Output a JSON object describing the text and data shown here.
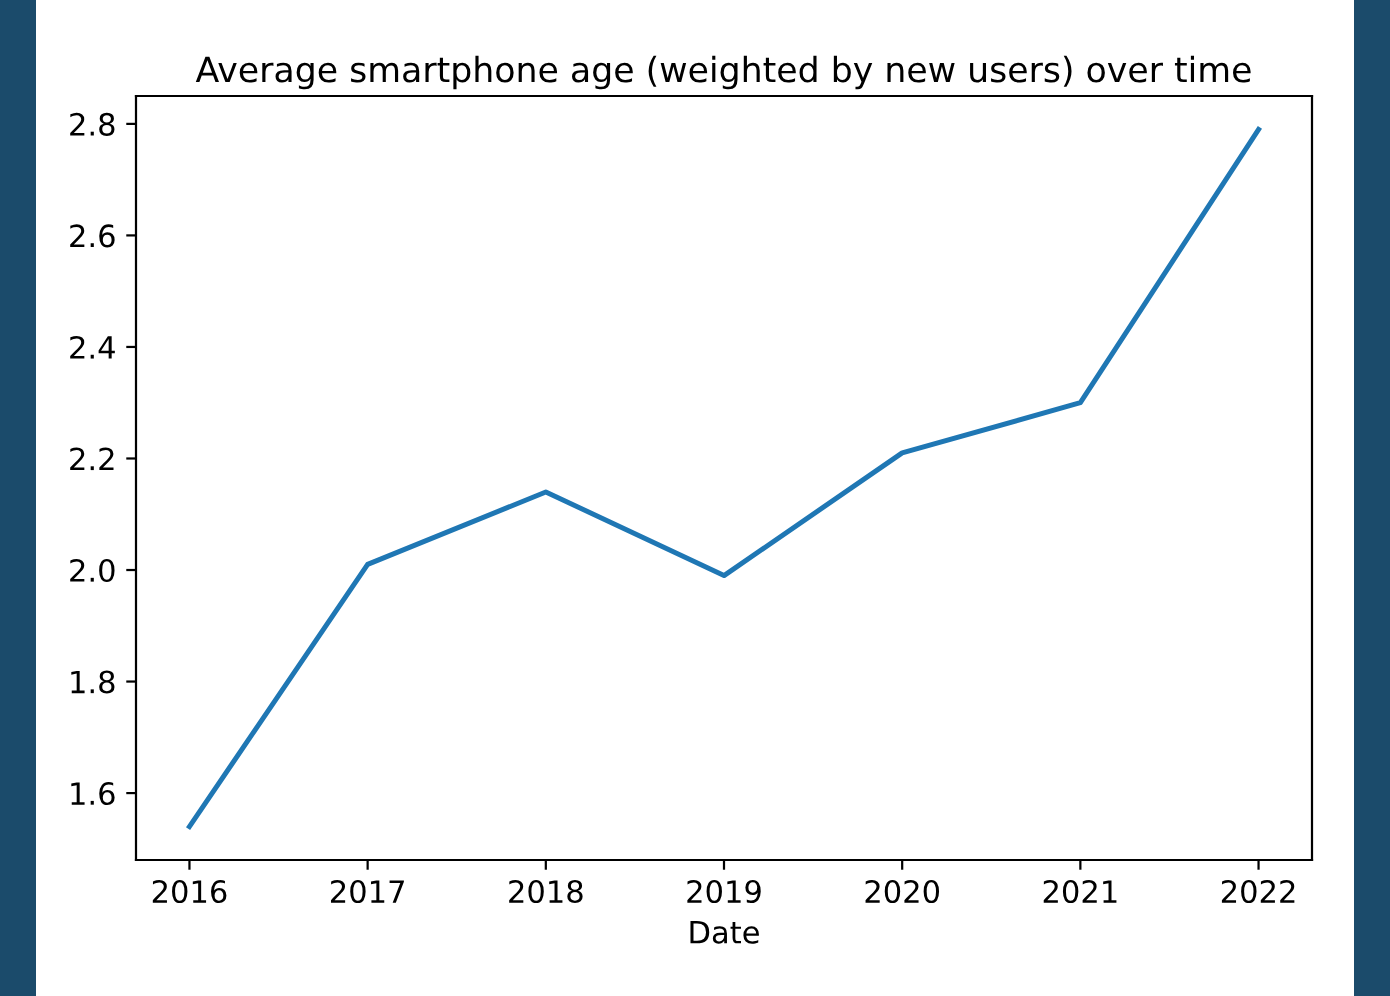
{
  "chart_data": {
    "type": "line",
    "title": "Average smartphone age (weighted by new users) over time",
    "xlabel": "Date",
    "x": [
      2016,
      2017,
      2018,
      2019,
      2020,
      2021,
      2022
    ],
    "series": [
      {
        "color": "#1f77b4",
        "values": [
          1.54,
          2.01,
          2.14,
          1.99,
          2.21,
          2.3,
          2.79
        ]
      }
    ],
    "xlim": [
      2015.7,
      2022.3
    ],
    "xticks": [
      2016,
      2017,
      2018,
      2019,
      2020,
      2021,
      2022
    ],
    "ylim": [
      1.48,
      2.85
    ],
    "yticks": [
      1.6,
      1.8,
      {
        "value": 2.0,
        "label": "2.0"
      },
      2.2,
      2.4,
      2.6,
      2.8
    ]
  }
}
